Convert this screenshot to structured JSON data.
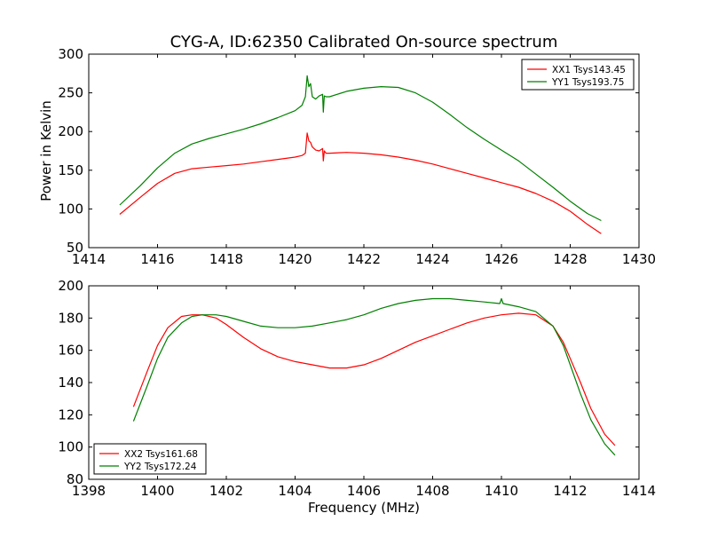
{
  "chart_data": [
    {
      "type": "line",
      "title": "CYG-A, ID:62350 Calibrated On-source spectrum",
      "xlabel": "",
      "ylabel": "Power in Kelvin",
      "xlim": [
        1414,
        1430
      ],
      "ylim": [
        50,
        300
      ],
      "xticks": [
        1414,
        1416,
        1418,
        1420,
        1422,
        1424,
        1426,
        1428,
        1430
      ],
      "yticks": [
        50,
        100,
        150,
        200,
        250,
        300
      ],
      "legend": "top-right",
      "series": [
        {
          "name": "XX1 Tsys143.45",
          "color": "#ff0000",
          "x": [
            1414.9,
            1415.5,
            1416.0,
            1416.5,
            1417.0,
            1417.5,
            1418.0,
            1418.5,
            1419.0,
            1419.5,
            1420.0,
            1420.2,
            1420.3,
            1420.35,
            1420.4,
            1420.45,
            1420.5,
            1420.6,
            1420.7,
            1420.8,
            1420.82,
            1420.85,
            1420.9,
            1421.0,
            1421.5,
            1422.0,
            1422.5,
            1423.0,
            1423.5,
            1424.0,
            1424.5,
            1425.0,
            1425.5,
            1426.0,
            1426.5,
            1427.0,
            1427.5,
            1428.0,
            1428.5,
            1428.9
          ],
          "y": [
            93,
            115,
            133,
            146,
            152,
            154,
            156,
            158,
            161,
            164,
            167,
            169,
            172,
            198,
            188,
            186,
            180,
            176,
            175,
            178,
            162,
            175,
            172,
            172,
            173,
            172,
            170,
            167,
            163,
            158,
            152,
            146,
            140,
            134,
            128,
            120,
            110,
            97,
            80,
            68
          ]
        },
        {
          "name": "YY1 Tsys193.75",
          "color": "#008000",
          "x": [
            1414.9,
            1415.5,
            1416.0,
            1416.5,
            1417.0,
            1417.5,
            1418.0,
            1418.5,
            1419.0,
            1419.5,
            1420.0,
            1420.2,
            1420.3,
            1420.35,
            1420.4,
            1420.45,
            1420.5,
            1420.6,
            1420.7,
            1420.8,
            1420.82,
            1420.85,
            1420.9,
            1421.0,
            1421.5,
            1422.0,
            1422.5,
            1423.0,
            1423.5,
            1424.0,
            1424.5,
            1425.0,
            1425.5,
            1426.0,
            1426.5,
            1427.0,
            1427.5,
            1428.0,
            1428.5,
            1428.9
          ],
          "y": [
            105,
            130,
            153,
            172,
            184,
            191,
            197,
            203,
            210,
            218,
            227,
            234,
            245,
            272,
            258,
            262,
            245,
            242,
            246,
            248,
            225,
            246,
            245,
            245,
            252,
            256,
            258,
            257,
            250,
            238,
            222,
            205,
            190,
            176,
            162,
            145,
            128,
            110,
            94,
            85
          ]
        }
      ]
    },
    {
      "type": "line",
      "title": "",
      "xlabel": "Frequency (MHz)",
      "ylabel": "",
      "xlim": [
        1398,
        1414
      ],
      "ylim": [
        80,
        200
      ],
      "xticks": [
        1398,
        1400,
        1402,
        1404,
        1406,
        1408,
        1410,
        1412,
        1414
      ],
      "yticks": [
        80,
        100,
        120,
        140,
        160,
        180,
        200
      ],
      "legend": "bottom-left",
      "series": [
        {
          "name": "XX2 Tsys161.68",
          "color": "#ff0000",
          "x": [
            1399.3,
            1399.7,
            1400.0,
            1400.3,
            1400.7,
            1401.0,
            1401.3,
            1401.7,
            1402.0,
            1402.5,
            1403.0,
            1403.5,
            1404.0,
            1404.5,
            1405.0,
            1405.5,
            1406.0,
            1406.5,
            1407.0,
            1407.5,
            1408.0,
            1408.5,
            1409.0,
            1409.5,
            1410.0,
            1410.5,
            1411.0,
            1411.5,
            1411.8,
            1412.0,
            1412.3,
            1412.6,
            1413.0,
            1413.3
          ],
          "y": [
            125,
            147,
            163,
            174,
            181,
            182,
            182,
            180,
            176,
            168,
            161,
            156,
            153,
            151,
            149,
            149,
            151,
            155,
            160,
            165,
            169,
            173,
            177,
            180,
            182,
            183,
            182,
            175,
            165,
            155,
            140,
            124,
            108,
            101
          ]
        },
        {
          "name": "YY2 Tsys172.24",
          "color": "#008000",
          "x": [
            1399.3,
            1399.7,
            1400.0,
            1400.3,
            1400.7,
            1401.0,
            1401.3,
            1401.7,
            1402.0,
            1402.5,
            1403.0,
            1403.5,
            1404.0,
            1404.5,
            1405.0,
            1405.5,
            1406.0,
            1406.5,
            1407.0,
            1407.5,
            1408.0,
            1408.5,
            1409.0,
            1409.5,
            1409.95,
            1410.0,
            1410.05,
            1410.5,
            1411.0,
            1411.5,
            1411.8,
            1412.0,
            1412.3,
            1412.6,
            1413.0,
            1413.3
          ],
          "y": [
            116,
            138,
            155,
            168,
            177,
            181,
            182,
            182,
            181,
            178,
            175,
            174,
            174,
            175,
            177,
            179,
            182,
            186,
            189,
            191,
            192,
            192,
            191,
            190,
            189,
            192,
            189,
            187,
            184,
            175,
            163,
            151,
            133,
            117,
            102,
            95
          ]
        }
      ]
    }
  ]
}
